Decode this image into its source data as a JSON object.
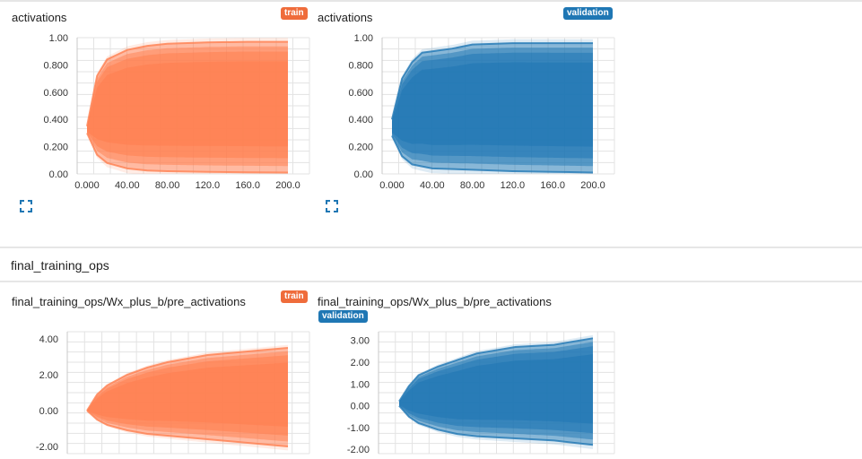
{
  "colors": {
    "train": "#ff7f50",
    "validation": "#1f77b4",
    "train_tag": "#ef6c3b",
    "validation_tag": "#1f77b4"
  },
  "sections": [
    {
      "cards": [
        {
          "title": "activations",
          "tag": "train",
          "expand_icon": "expand-icon"
        },
        {
          "title": "activations",
          "tag": "validation",
          "expand_icon": "expand-icon"
        }
      ]
    },
    {
      "title": "final_training_ops",
      "cards": [
        {
          "title": "final_training_ops/Wx_plus_b/pre_activations",
          "tag": "train"
        },
        {
          "title": "final_training_ops/Wx_plus_b/pre_activations",
          "tag": "validation"
        }
      ]
    }
  ],
  "chart_data": [
    {
      "type": "area",
      "series": [
        {
          "name": "train"
        }
      ],
      "x_ticks": [
        "0.000",
        "40.00",
        "80.00",
        "120.0",
        "160.0",
        "200.0"
      ],
      "y_ticks": [
        "1.00",
        "0.800",
        "0.600",
        "0.400",
        "0.200",
        "0.00"
      ],
      "xlim": [
        0,
        200
      ],
      "ylim": [
        0,
        1
      ],
      "upper": [
        [
          0,
          0.35
        ],
        [
          10,
          0.72
        ],
        [
          20,
          0.84
        ],
        [
          40,
          0.91
        ],
        [
          60,
          0.94
        ],
        [
          80,
          0.955
        ],
        [
          120,
          0.965
        ],
        [
          160,
          0.97
        ],
        [
          200,
          0.97
        ]
      ],
      "lower": [
        [
          0,
          0.3
        ],
        [
          10,
          0.14
        ],
        [
          20,
          0.08
        ],
        [
          40,
          0.04
        ],
        [
          60,
          0.025
        ],
        [
          80,
          0.02
        ],
        [
          120,
          0.015
        ],
        [
          160,
          0.012
        ],
        [
          200,
          0.01
        ]
      ],
      "grid": true
    },
    {
      "type": "area",
      "series": [
        {
          "name": "validation"
        }
      ],
      "x_ticks": [
        "0.000",
        "40.00",
        "80.00",
        "120.0",
        "160.0",
        "200.0"
      ],
      "y_ticks": [
        "1.00",
        "0.800",
        "0.600",
        "0.400",
        "0.200",
        "0.00"
      ],
      "xlim": [
        0,
        200
      ],
      "ylim": [
        0,
        1
      ],
      "upper": [
        [
          0,
          0.4
        ],
        [
          10,
          0.7
        ],
        [
          20,
          0.82
        ],
        [
          30,
          0.89
        ],
        [
          40,
          0.9
        ],
        [
          60,
          0.92
        ],
        [
          80,
          0.95
        ],
        [
          120,
          0.96
        ],
        [
          160,
          0.96
        ],
        [
          200,
          0.96
        ]
      ],
      "lower": [
        [
          0,
          0.28
        ],
        [
          10,
          0.13
        ],
        [
          20,
          0.07
        ],
        [
          40,
          0.04
        ],
        [
          80,
          0.03
        ],
        [
          120,
          0.02
        ],
        [
          160,
          0.015
        ],
        [
          200,
          0.01
        ]
      ],
      "grid": true
    },
    {
      "type": "area",
      "series": [
        {
          "name": "train"
        }
      ],
      "y_ticks": [
        "4.00",
        "2.00",
        "0.00",
        "-2.00"
      ],
      "xlim": [
        0,
        200
      ],
      "ylim": [
        -2.4,
        4.4
      ],
      "upper": [
        [
          0,
          0.0
        ],
        [
          10,
          0.9
        ],
        [
          20,
          1.4
        ],
        [
          40,
          2.0
        ],
        [
          60,
          2.4
        ],
        [
          80,
          2.7
        ],
        [
          120,
          3.1
        ],
        [
          160,
          3.3
        ],
        [
          200,
          3.5
        ]
      ],
      "lower": [
        [
          0,
          0.0
        ],
        [
          10,
          -0.5
        ],
        [
          20,
          -0.8
        ],
        [
          40,
          -1.1
        ],
        [
          60,
          -1.3
        ],
        [
          80,
          -1.4
        ],
        [
          120,
          -1.6
        ],
        [
          160,
          -1.8
        ],
        [
          200,
          -2.0
        ]
      ],
      "grid": true
    },
    {
      "type": "area",
      "series": [
        {
          "name": "validation"
        }
      ],
      "y_ticks": [
        "3.00",
        "2.00",
        "1.00",
        "0.00",
        "-1.00",
        "-2.00"
      ],
      "xlim": [
        0,
        200
      ],
      "ylim": [
        -2.2,
        3.4
      ],
      "upper": [
        [
          0,
          0.2
        ],
        [
          10,
          0.9
        ],
        [
          20,
          1.4
        ],
        [
          40,
          1.8
        ],
        [
          60,
          2.1
        ],
        [
          80,
          2.4
        ],
        [
          120,
          2.7
        ],
        [
          160,
          2.8
        ],
        [
          200,
          3.1
        ]
      ],
      "lower": [
        [
          0,
          0.0
        ],
        [
          10,
          -0.5
        ],
        [
          20,
          -0.8
        ],
        [
          40,
          -1.1
        ],
        [
          60,
          -1.3
        ],
        [
          80,
          -1.4
        ],
        [
          120,
          -1.5
        ],
        [
          160,
          -1.6
        ],
        [
          200,
          -1.8
        ]
      ],
      "grid": true
    }
  ]
}
